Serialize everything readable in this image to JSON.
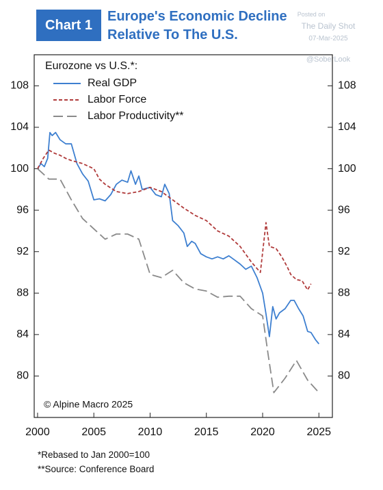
{
  "chart_data": {
    "type": "line",
    "badge": "Chart 1",
    "title": "Europe's Economic Decline Relative To The U.S.",
    "watermark": [
      "Posted on",
      "The Daily Shot",
      "07-Mar-2025",
      "@SoberLook"
    ],
    "legend_title": "Eurozone vs U.S.*:",
    "annotation": "© Alpine Macro 2025",
    "footnotes": [
      "*Rebased to Jan 2000=100",
      "**Source: Conference Board"
    ],
    "xlim": [
      1999.7,
      2026.2
    ],
    "ylim": [
      76,
      111
    ],
    "xticks": [
      2000,
      2005,
      2010,
      2015,
      2020,
      2025
    ],
    "yticks": [
      80,
      84,
      88,
      92,
      96,
      100,
      104,
      108
    ],
    "series": [
      {
        "name": "Real GDP",
        "color": "#3d7fd0",
        "dash": "solid",
        "x": [
          2000,
          2000.3,
          2000.6,
          2000.9,
          2001.1,
          2001.3,
          2001.6,
          2002,
          2002.5,
          2003,
          2003.5,
          2004,
          2004.5,
          2005,
          2005.5,
          2006,
          2006.5,
          2007,
          2007.5,
          2008,
          2008.3,
          2008.7,
          2009,
          2009.3,
          2010,
          2010.5,
          2011,
          2011.3,
          2011.7,
          2012,
          2012.5,
          2013,
          2013.3,
          2013.7,
          2014,
          2014.5,
          2015,
          2015.5,
          2016,
          2016.5,
          2017,
          2017.5,
          2018,
          2018.5,
          2019,
          2019.5,
          2020,
          2020.3,
          2020.6,
          2020.9,
          2021.2,
          2021.5,
          2022,
          2022.5,
          2022.8,
          2023.2,
          2023.6,
          2024,
          2024.3,
          2024.7,
          2025
        ],
        "values": [
          100,
          100.5,
          100.2,
          101,
          103.5,
          103.2,
          103.5,
          102.8,
          102.4,
          102.4,
          100.5,
          99.5,
          98.8,
          97,
          97.1,
          96.9,
          97.5,
          98.5,
          98.9,
          98.7,
          99.8,
          98.5,
          99.3,
          98,
          98.2,
          97.5,
          97.3,
          98.5,
          97.6,
          95,
          94.5,
          93.8,
          92.5,
          93,
          92.8,
          91.8,
          91.5,
          91.3,
          91.5,
          91.3,
          91.6,
          91.2,
          90.8,
          90.3,
          90.6,
          89.5,
          88,
          86,
          83.8,
          86.7,
          85.5,
          86.1,
          86.5,
          87.3,
          87.3,
          86.5,
          85.8,
          84.3,
          84.2,
          83.5,
          83.1
        ]
      },
      {
        "name": "Labor Force",
        "color": "#b03a3a",
        "dash": "short",
        "x": [
          2000,
          2000.5,
          2001,
          2001.5,
          2002,
          2002.5,
          2003,
          2004,
          2005,
          2005.5,
          2006,
          2007,
          2008,
          2009,
          2010,
          2011,
          2012,
          2013,
          2014,
          2015,
          2016,
          2017,
          2018,
          2019,
          2019.8,
          2020.3,
          2020.6,
          2021.2,
          2021.7,
          2022.2,
          2022.5,
          2023,
          2023.5,
          2024,
          2024.3
        ],
        "values": [
          100,
          101,
          101.8,
          101.5,
          101.3,
          101,
          100.8,
          100.5,
          100,
          99,
          98.5,
          97.8,
          97.6,
          97.8,
          98.2,
          97.8,
          97,
          96.2,
          95.5,
          95,
          94,
          93.5,
          92.5,
          91,
          90,
          94.8,
          92.5,
          92.3,
          91.5,
          90.5,
          89.8,
          89.3,
          89.2,
          88.3,
          88.9
        ]
      },
      {
        "name": "Labor Productivity**",
        "color": "#8a8a8a",
        "dash": "long",
        "x": [
          2000,
          2000.5,
          2001,
          2002,
          2003,
          2004,
          2005,
          2006,
          2007,
          2008,
          2009,
          2010,
          2011,
          2012,
          2013,
          2014,
          2015,
          2016,
          2017,
          2018,
          2019,
          2020,
          2020.5,
          2021,
          2022,
          2023,
          2024,
          2025
        ],
        "values": [
          100,
          99.5,
          99,
          99,
          97,
          95.2,
          94.2,
          93.2,
          93.7,
          93.7,
          93.2,
          89.8,
          89.5,
          90.2,
          89,
          88.4,
          88.2,
          87.6,
          87.7,
          87.7,
          86.5,
          85.8,
          82,
          78.4,
          79.8,
          81.5,
          79.6,
          78.4
        ]
      }
    ]
  }
}
